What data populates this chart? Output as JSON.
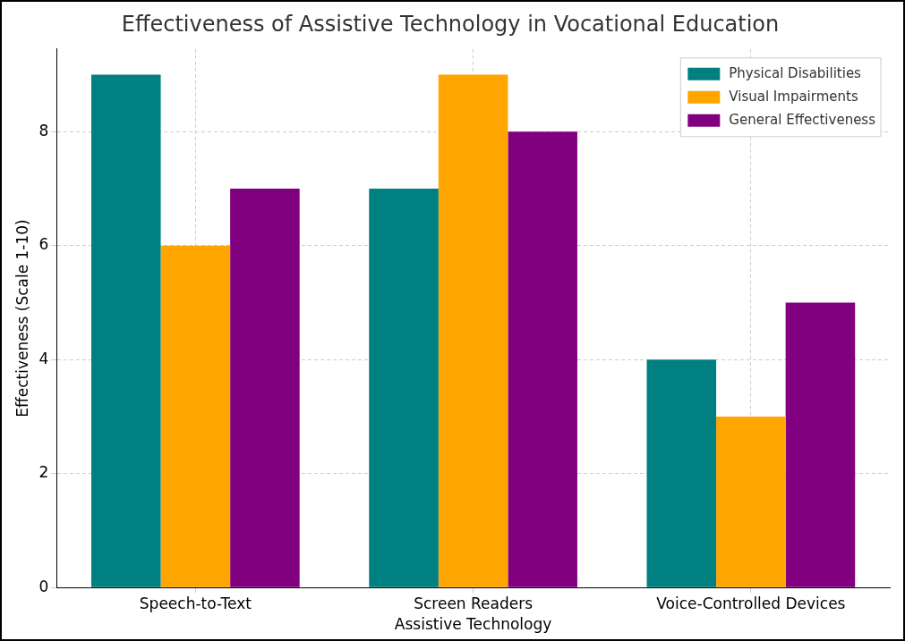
{
  "chart_data": {
    "type": "bar",
    "title": "Effectiveness of Assistive Technology in Vocational Education",
    "xlabel": "Assistive Technology",
    "ylabel": "Effectiveness (Scale 1-10)",
    "categories": [
      "Speech-to-Text",
      "Screen Readers",
      "Voice-Controlled Devices"
    ],
    "series": [
      {
        "name": "Physical Disabilities",
        "color": "#008080",
        "values": [
          9,
          7,
          4
        ]
      },
      {
        "name": "Visual Impairments",
        "color": "#ffa500",
        "values": [
          6,
          9,
          3
        ]
      },
      {
        "name": "General Effectiveness",
        "color": "#800080",
        "values": [
          7,
          8,
          5
        ]
      }
    ],
    "ylim": [
      0,
      9.45
    ],
    "yticks": [
      0,
      2,
      4,
      6,
      8
    ],
    "grid": true,
    "legend": "top right"
  }
}
